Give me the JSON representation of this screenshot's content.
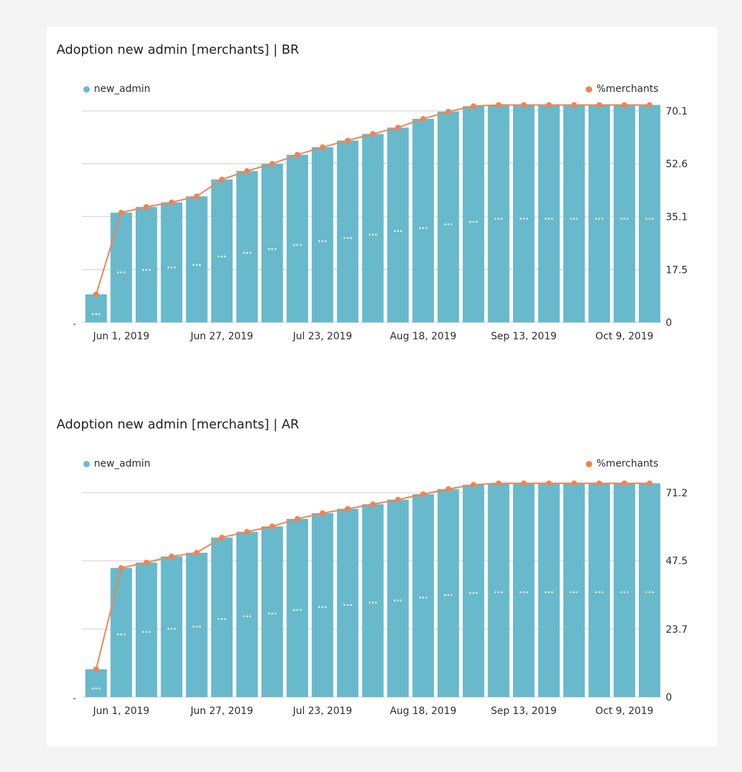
{
  "colors": {
    "bar": "#68b9cc",
    "line": "#f08451",
    "grid": "#cfcfcf",
    "dots_label": "#ffffff"
  },
  "chart_data": [
    {
      "type": "bar",
      "title": "Adoption new admin [merchants] | BR",
      "legend": {
        "bar_series": "new_admin",
        "line_series": "%merchants",
        "placement": "top"
      },
      "y_right_ticks": [
        "70.1",
        "52.6",
        "35.1",
        "17.5",
        "0"
      ],
      "y_right_range": [
        0,
        70.1
      ],
      "left_axis_tick": "-",
      "x_tick_labels": [
        "Jun 1, 2019",
        "Jun 27, 2019",
        "Jul 23, 2019",
        "Aug 18, 2019",
        "Sep 13, 2019",
        "Oct 9, 2019"
      ],
      "grid": true,
      "bar_data_label": "...",
      "series": [
        {
          "name": "new_admin",
          "type": "bar",
          "values": [
            9.3,
            36.4,
            38.3,
            39.8,
            41.8,
            47.4,
            50.2,
            52.6,
            55.6,
            58.1,
            60.3,
            62.5,
            64.6,
            67.5,
            69.9,
            71.7,
            72.1,
            72.1,
            72.1,
            72.1,
            72.1,
            72.1,
            72.1
          ]
        },
        {
          "name": "%merchants",
          "type": "line",
          "values": [
            9.3,
            36.4,
            38.3,
            39.8,
            41.8,
            47.4,
            50.2,
            52.6,
            55.6,
            58.1,
            60.3,
            62.5,
            64.6,
            67.5,
            69.9,
            71.7,
            72.1,
            72.1,
            72.1,
            72.1,
            72.1,
            72.1,
            72.1
          ]
        }
      ],
      "bar_label_values": [
        3.4,
        17.2,
        18.1,
        18.9,
        19.7,
        22.5,
        23.7,
        25.0,
        26.3,
        27.5,
        28.6,
        29.8,
        30.9,
        31.9,
        33.2,
        34.0,
        35.1,
        35.1,
        35.1,
        35.1,
        35.1,
        35.1,
        35.1
      ]
    },
    {
      "type": "bar",
      "title": "Adoption new admin [merchants] | AR",
      "legend": {
        "bar_series": "new_admin",
        "line_series": "%merchants",
        "placement": "top"
      },
      "y_right_ticks": [
        "71.2",
        "47.5",
        "23.7",
        "0"
      ],
      "y_right_range": [
        0,
        71.2
      ],
      "left_axis_tick": "-",
      "x_tick_labels": [
        "Jun 1, 2019",
        "Jun 27, 2019",
        "Jul 23, 2019",
        "Aug 18, 2019",
        "Sep 13, 2019",
        "Oct 9, 2019"
      ],
      "grid": true,
      "bar_data_label": "...",
      "series": [
        {
          "name": "new_admin",
          "type": "bar",
          "values": [
            9.7,
            45.0,
            46.9,
            49.0,
            50.3,
            55.6,
            57.6,
            59.5,
            62.1,
            64.1,
            65.6,
            67.2,
            68.8,
            70.7,
            72.5,
            74.0,
            74.5,
            74.5,
            74.5,
            74.5,
            74.5,
            74.5,
            74.5
          ]
        },
        {
          "name": "%merchants",
          "type": "line",
          "values": [
            9.7,
            45.0,
            46.9,
            49.0,
            50.3,
            55.6,
            57.6,
            59.5,
            62.1,
            64.1,
            65.6,
            67.2,
            68.8,
            70.7,
            72.5,
            74.0,
            74.5,
            74.5,
            74.5,
            74.5,
            74.5,
            74.5,
            74.5
          ]
        }
      ],
      "bar_label_values": [
        3.7,
        22.5,
        23.4,
        24.5,
        25.2,
        27.8,
        28.8,
        29.8,
        31.0,
        32.0,
        32.8,
        33.6,
        34.4,
        35.3,
        36.2,
        36.9,
        37.2,
        37.2,
        37.2,
        37.2,
        37.2,
        37.2,
        37.2
      ]
    }
  ]
}
